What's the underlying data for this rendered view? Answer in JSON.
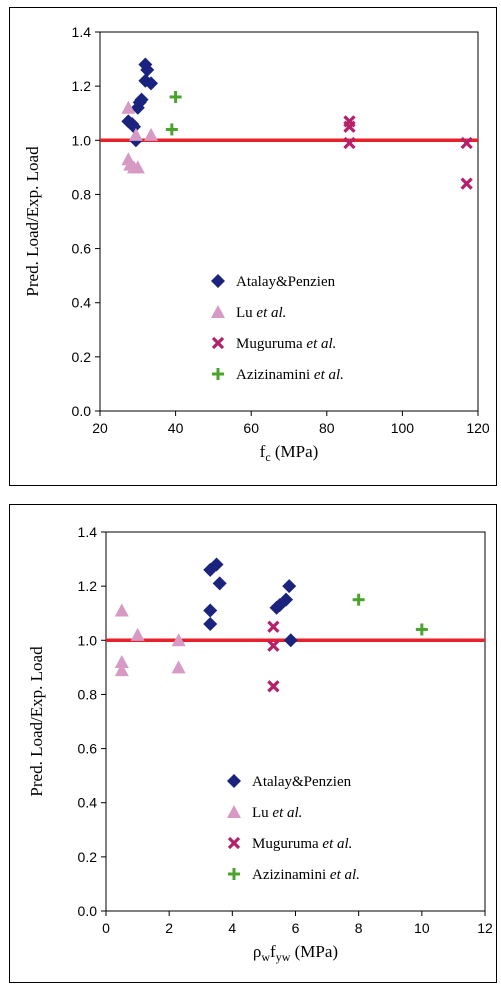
{
  "chart_data": [
    {
      "type": "scatter",
      "xlabel": "f",
      "xlabel_sub": "c",
      "xlabel_unit": " (MPa)",
      "ylabel": "Pred. Load/Exp. Load",
      "xlim": [
        20,
        120
      ],
      "ylim": [
        0.0,
        1.4
      ],
      "xticks": [
        "20",
        "40",
        "60",
        "80",
        "100",
        "120"
      ],
      "yticks": [
        "0.0",
        "0.2",
        "0.4",
        "0.6",
        "0.8",
        "1.0",
        "1.2",
        "1.4"
      ],
      "reference_line": {
        "y": 1.0,
        "color": "#e8202a"
      },
      "grid": false,
      "legend_position": "center-bottom",
      "series": [
        {
          "name": "Atalay&Penzien",
          "name_parts": [
            [
              "Atalay&Penzien",
              false
            ]
          ],
          "marker": "diamond",
          "color": "#1a237e",
          "points": [
            [
              27.5,
              1.07
            ],
            [
              28.5,
              1.06
            ],
            [
              29,
              1.05
            ],
            [
              30,
              1.12
            ],
            [
              30.5,
              1.14
            ],
            [
              31,
              1.15
            ],
            [
              32,
              1.28
            ],
            [
              32,
              1.22
            ],
            [
              32.5,
              1.26
            ],
            [
              33.5,
              1.21
            ],
            [
              29.5,
              1.0
            ]
          ]
        },
        {
          "name": "Lu et al.",
          "name_parts": [
            [
              "Lu ",
              false
            ],
            [
              "et al.",
              true
            ]
          ],
          "marker": "triangle",
          "color": "#d79ac4",
          "points": [
            [
              27.5,
              1.12
            ],
            [
              27.5,
              0.93
            ],
            [
              28,
              0.91
            ],
            [
              29,
              0.9
            ],
            [
              30,
              0.9
            ],
            [
              29.5,
              1.02
            ],
            [
              33.5,
              1.02
            ]
          ]
        },
        {
          "name": "Muguruma et al.",
          "name_parts": [
            [
              "Muguruma ",
              false
            ],
            [
              "et al.",
              true
            ]
          ],
          "marker": "x",
          "color": "#b5206b",
          "points": [
            [
              86,
              1.07
            ],
            [
              86,
              1.05
            ],
            [
              86,
              0.99
            ],
            [
              117,
              0.99
            ],
            [
              117,
              0.84
            ]
          ]
        },
        {
          "name": "Azizinamini et al.",
          "name_parts": [
            [
              "Azizinamini ",
              false
            ],
            [
              "et al.",
              true
            ]
          ],
          "marker": "plus",
          "color": "#4aa32c",
          "points": [
            [
              40,
              1.16
            ],
            [
              39,
              1.04
            ]
          ]
        }
      ]
    },
    {
      "type": "scatter",
      "xlabel": "ρ",
      "xlabel_sub": "w",
      "xlabel_mid": "f",
      "xlabel_sub2": "yw",
      "xlabel_unit": "  (MPa)",
      "ylabel": "Pred. Load/Exp. Load",
      "xlim": [
        0,
        12
      ],
      "ylim": [
        0.0,
        1.4
      ],
      "xticks": [
        "0",
        "2",
        "4",
        "6",
        "8",
        "10",
        "12"
      ],
      "yticks": [
        "0.0",
        "0.2",
        "0.4",
        "0.6",
        "0.8",
        "1.0",
        "1.2",
        "1.4"
      ],
      "reference_line": {
        "y": 1.0,
        "color": "#e8202a"
      },
      "grid": false,
      "legend_position": "center-bottom",
      "series": [
        {
          "name": "Atalay&Penzien",
          "name_parts": [
            [
              "Atalay&Penzien",
              false
            ]
          ],
          "marker": "diamond",
          "color": "#1a237e",
          "points": [
            [
              3.3,
              1.26
            ],
            [
              3.5,
              1.28
            ],
            [
              3.6,
              1.21
            ],
            [
              3.3,
              1.11
            ],
            [
              3.3,
              1.06
            ],
            [
              5.4,
              1.12
            ],
            [
              5.5,
              1.13
            ],
            [
              5.7,
              1.15
            ],
            [
              5.8,
              1.2
            ],
            [
              5.85,
              1.0
            ]
          ]
        },
        {
          "name": "Lu et al.",
          "name_parts": [
            [
              "Lu ",
              false
            ],
            [
              "et al.",
              true
            ]
          ],
          "marker": "triangle",
          "color": "#d79ac4",
          "points": [
            [
              0.5,
              1.11
            ],
            [
              0.5,
              0.92
            ],
            [
              0.5,
              0.89
            ],
            [
              1.0,
              1.02
            ],
            [
              2.3,
              1.0
            ],
            [
              2.3,
              0.9
            ]
          ]
        },
        {
          "name": "Muguruma et al.",
          "name_parts": [
            [
              "Muguruma ",
              false
            ],
            [
              "et al.",
              true
            ]
          ],
          "marker": "x",
          "color": "#b5206b",
          "points": [
            [
              5.3,
              1.05
            ],
            [
              5.3,
              0.98
            ],
            [
              5.3,
              0.83
            ]
          ]
        },
        {
          "name": "Azizinamini et al.",
          "name_parts": [
            [
              "Azizinamini ",
              false
            ],
            [
              "et al.",
              true
            ]
          ],
          "marker": "plus",
          "color": "#4aa32c",
          "points": [
            [
              8.0,
              1.15
            ],
            [
              10.0,
              1.04
            ]
          ]
        }
      ]
    }
  ]
}
